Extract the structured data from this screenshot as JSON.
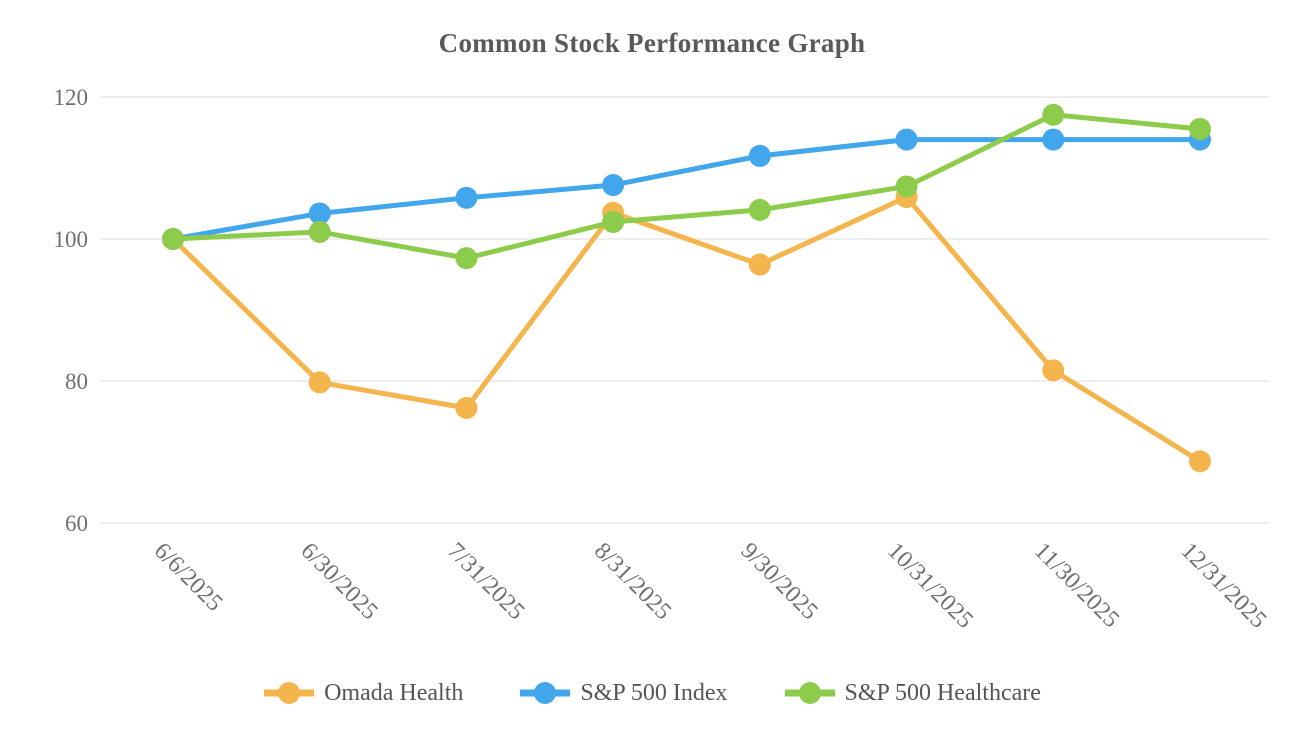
{
  "chart_data": {
    "type": "line",
    "title": "Common Stock Performance Graph",
    "categories": [
      "6/6/2025",
      "6/30/2025",
      "7/31/2025",
      "8/31/2025",
      "9/30/2025",
      "10/31/2025",
      "11/30/2025",
      "12/31/2025"
    ],
    "series": [
      {
        "name": "Omada Health",
        "color": "#F5B54D",
        "values": [
          100,
          79.8,
          76.2,
          103.7,
          96.4,
          105.9,
          81.5,
          68.7
        ]
      },
      {
        "name": "S&P 500 Index",
        "color": "#41A6EC",
        "values": [
          100,
          103.6,
          105.8,
          107.6,
          111.7,
          114,
          114,
          114
        ]
      },
      {
        "name": "S&P 500 Healthcare",
        "color": "#8DCC4B",
        "values": [
          100,
          101,
          97.3,
          102.4,
          104.1,
          107.4,
          117.5,
          115.5
        ]
      }
    ],
    "xlabel": "",
    "ylabel": "",
    "y_axis": {
      "ticks": [
        60,
        80,
        100,
        120
      ]
    },
    "ylim": [
      60,
      124
    ],
    "grid": true,
    "grid_color": "#e9e9e9",
    "legend_position": "bottom",
    "x_tick_rotation": 45,
    "title_color": "#595959",
    "axis_text_color": "#6f6f6f"
  }
}
